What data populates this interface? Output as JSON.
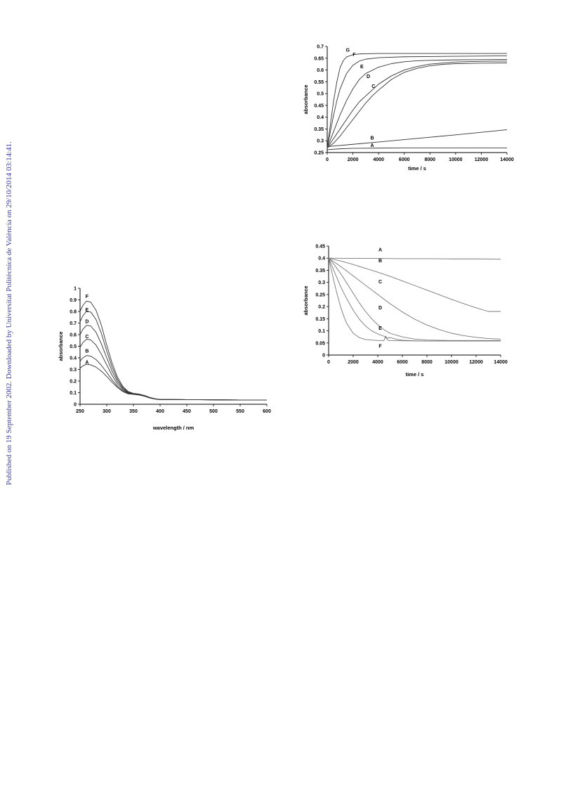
{
  "side_note": "Published on 19 September 2002. Downloaded by Universitat Politècnica de València on 29/10/2014 03:14:41.",
  "chart_data": [
    {
      "id": "time-course-rise",
      "type": "line",
      "title": "",
      "xlabel": "time / s",
      "ylabel": "absorbance",
      "xlim": [
        0,
        14000
      ],
      "ylim": [
        0.25,
        0.7
      ],
      "xticks": [
        0,
        2000,
        4000,
        6000,
        8000,
        10000,
        12000,
        14000
      ],
      "xtick_labels": [
        "0",
        "2000",
        "4000",
        "6000",
        "8000",
        "10000",
        "12000",
        "14000"
      ],
      "yticks": [
        0.25,
        0.3,
        0.35,
        0.4,
        0.45,
        0.5,
        0.55,
        0.6,
        0.65,
        0.7
      ],
      "ytick_labels": [
        "0.25",
        "0.3",
        "0.35",
        "0.4",
        "0.45",
        "0.5",
        "0.55",
        "0.6",
        "0.65",
        "0.7"
      ],
      "grid": false,
      "line_color": "#333333",
      "series": [
        {
          "name": "A",
          "x": [
            0,
            1000,
            2000,
            4000,
            6000,
            8000,
            10000,
            12000,
            14000
          ],
          "y": [
            0.262,
            0.266,
            0.268,
            0.269,
            0.27,
            0.27,
            0.27,
            0.27,
            0.27
          ]
        },
        {
          "name": "B",
          "x": [
            0,
            2000,
            4000,
            6000,
            8000,
            10000,
            12000,
            14000
          ],
          "y": [
            0.275,
            0.285,
            0.295,
            0.305,
            0.315,
            0.325,
            0.336,
            0.347
          ]
        },
        {
          "name": "C",
          "x": [
            0,
            500,
            1000,
            1500,
            2000,
            2500,
            3000,
            3500,
            4000,
            5000,
            6000,
            7000,
            8000,
            9000,
            10000,
            12000,
            14000
          ],
          "y": [
            0.27,
            0.29,
            0.32,
            0.355,
            0.39,
            0.425,
            0.46,
            0.49,
            0.515,
            0.56,
            0.59,
            0.607,
            0.618,
            0.624,
            0.627,
            0.629,
            0.63
          ]
        },
        {
          "name": "D",
          "x": [
            0,
            500,
            1000,
            1500,
            2000,
            2500,
            3000,
            4000,
            5000,
            6000,
            7000,
            8000,
            10000,
            12000,
            14000
          ],
          "y": [
            0.27,
            0.31,
            0.35,
            0.39,
            0.43,
            0.465,
            0.49,
            0.54,
            0.575,
            0.6,
            0.615,
            0.625,
            0.634,
            0.637,
            0.638
          ]
        },
        {
          "name": "E",
          "x": [
            0,
            500,
            1000,
            1500,
            2000,
            2500,
            3000,
            4000,
            5000,
            6000,
            7000,
            8000,
            10000,
            12000,
            14000
          ],
          "y": [
            0.27,
            0.34,
            0.41,
            0.47,
            0.52,
            0.56,
            0.585,
            0.612,
            0.627,
            0.635,
            0.639,
            0.641,
            0.643,
            0.644,
            0.645
          ]
        },
        {
          "name": "F",
          "x": [
            0,
            250,
            500,
            750,
            1000,
            1500,
            2000,
            2500,
            3000,
            4000,
            6000,
            8000,
            10000,
            14000
          ],
          "y": [
            0.27,
            0.34,
            0.41,
            0.47,
            0.52,
            0.585,
            0.62,
            0.638,
            0.646,
            0.652,
            0.656,
            0.657,
            0.658,
            0.66
          ]
        },
        {
          "name": "G",
          "x": [
            0,
            250,
            500,
            750,
            1000,
            1250,
            1500,
            2000,
            2500,
            3000,
            4000,
            6000,
            10000,
            14000
          ],
          "y": [
            0.27,
            0.37,
            0.47,
            0.55,
            0.61,
            0.64,
            0.655,
            0.665,
            0.668,
            0.669,
            0.67,
            0.67,
            0.67,
            0.67
          ]
        }
      ],
      "labels": [
        {
          "text": "G",
          "x": 1600,
          "y": 0.678
        },
        {
          "text": "F",
          "x": 2100,
          "y": 0.659
        },
        {
          "text": "E",
          "x": 2700,
          "y": 0.607
        },
        {
          "text": "D",
          "x": 3200,
          "y": 0.566
        },
        {
          "text": "C",
          "x": 3600,
          "y": 0.524
        },
        {
          "text": "B",
          "x": 3500,
          "y": 0.305
        },
        {
          "text": "A",
          "x": 3500,
          "y": 0.274
        }
      ]
    },
    {
      "id": "uv-vis-spectra",
      "type": "line",
      "title": "",
      "xlabel": "wavelength / nm",
      "ylabel": "absorbance",
      "xlim": [
        250,
        600
      ],
      "ylim": [
        0,
        1
      ],
      "xticks": [
        250,
        300,
        350,
        400,
        450,
        500,
        550,
        600
      ],
      "xtick_labels": [
        "250",
        "300",
        "350",
        "400",
        "450",
        "500",
        "550",
        "600"
      ],
      "yticks": [
        0,
        0.1,
        0.2,
        0.3,
        0.4,
        0.5,
        0.6,
        0.7,
        0.8,
        0.9,
        1
      ],
      "ytick_labels": [
        "0",
        "0.1",
        "0.2",
        "0.3",
        "0.4",
        "0.5",
        "0.6",
        "0.7",
        "0.8",
        "0.9",
        "1"
      ],
      "grid": false,
      "line_color": "#333333",
      "series": [
        {
          "name": "A",
          "x": [
            250,
            255,
            262,
            270,
            280,
            290,
            300,
            310,
            320,
            330,
            340,
            350,
            360,
            370,
            380,
            390,
            400,
            450,
            500,
            550,
            600
          ],
          "y": [
            0.31,
            0.33,
            0.345,
            0.34,
            0.32,
            0.285,
            0.24,
            0.19,
            0.145,
            0.11,
            0.09,
            0.085,
            0.08,
            0.07,
            0.055,
            0.045,
            0.04,
            0.04,
            0.038,
            0.037,
            0.037
          ]
        },
        {
          "name": "B",
          "x": [
            250,
            255,
            262,
            270,
            280,
            290,
            300,
            310,
            320,
            330,
            340,
            350,
            360,
            370,
            380,
            390,
            400,
            450,
            500,
            550,
            600
          ],
          "y": [
            0.37,
            0.4,
            0.42,
            0.415,
            0.385,
            0.335,
            0.275,
            0.21,
            0.155,
            0.115,
            0.093,
            0.087,
            0.082,
            0.072,
            0.056,
            0.045,
            0.04,
            0.04,
            0.038,
            0.037,
            0.037
          ]
        },
        {
          "name": "C",
          "x": [
            250,
            255,
            262,
            270,
            280,
            290,
            300,
            310,
            320,
            330,
            340,
            350,
            360,
            370,
            380,
            390,
            400,
            450,
            500,
            550,
            600
          ],
          "y": [
            0.49,
            0.53,
            0.56,
            0.555,
            0.51,
            0.43,
            0.34,
            0.25,
            0.175,
            0.125,
            0.097,
            0.089,
            0.084,
            0.074,
            0.057,
            0.046,
            0.041,
            0.04,
            0.038,
            0.037,
            0.037
          ]
        },
        {
          "name": "D",
          "x": [
            250,
            255,
            262,
            270,
            280,
            290,
            300,
            310,
            320,
            330,
            340,
            350,
            360,
            370,
            380,
            390,
            400,
            450,
            500,
            550,
            600
          ],
          "y": [
            0.6,
            0.645,
            0.68,
            0.675,
            0.62,
            0.52,
            0.4,
            0.285,
            0.195,
            0.135,
            0.1,
            0.09,
            0.085,
            0.075,
            0.058,
            0.046,
            0.041,
            0.04,
            0.038,
            0.037,
            0.037
          ]
        },
        {
          "name": "E",
          "x": [
            250,
            255,
            262,
            270,
            280,
            290,
            300,
            310,
            320,
            330,
            340,
            350,
            360,
            370,
            380,
            390,
            400,
            450,
            500,
            550,
            600
          ],
          "y": [
            0.71,
            0.76,
            0.8,
            0.795,
            0.73,
            0.61,
            0.46,
            0.32,
            0.215,
            0.145,
            0.105,
            0.092,
            0.087,
            0.076,
            0.059,
            0.047,
            0.042,
            0.04,
            0.038,
            0.037,
            0.037
          ]
        },
        {
          "name": "F",
          "x": [
            250,
            255,
            262,
            270,
            280,
            290,
            300,
            310,
            320,
            330,
            340,
            350,
            360,
            370,
            380,
            390,
            400,
            450,
            500,
            550,
            600
          ],
          "y": [
            0.8,
            0.85,
            0.89,
            0.88,
            0.81,
            0.68,
            0.51,
            0.355,
            0.235,
            0.155,
            0.11,
            0.094,
            0.088,
            0.077,
            0.06,
            0.048,
            0.042,
            0.04,
            0.038,
            0.037,
            0.037
          ]
        }
      ],
      "labels": [
        {
          "text": "F",
          "x": 263,
          "y": 0.915
        },
        {
          "text": "E",
          "x": 263,
          "y": 0.8
        },
        {
          "text": "D",
          "x": 263,
          "y": 0.7
        },
        {
          "text": "C",
          "x": 263,
          "y": 0.57
        },
        {
          "text": "B",
          "x": 263,
          "y": 0.445
        },
        {
          "text": "A",
          "x": 263,
          "y": 0.35
        }
      ]
    },
    {
      "id": "time-course-decay",
      "type": "line",
      "title": "",
      "xlabel": "time / s",
      "ylabel": "absorbance",
      "xlim": [
        0,
        14000
      ],
      "ylim": [
        0,
        0.45
      ],
      "xticks": [
        0,
        2000,
        4000,
        6000,
        8000,
        10000,
        12000,
        14000
      ],
      "xtick_labels": [
        "0",
        "2000",
        "4000",
        "6000",
        "8000",
        "10000",
        "12000",
        "14000"
      ],
      "yticks": [
        0,
        0.05,
        0.1,
        0.15,
        0.2,
        0.25,
        0.3,
        0.35,
        0.4,
        0.45
      ],
      "ytick_labels": [
        "0",
        "0.05",
        "0.1",
        "0.15",
        "0.2",
        "0.25",
        "0.3",
        "0.35",
        "0.4",
        "0.45"
      ],
      "grid": false,
      "line_color": "#777777",
      "series": [
        {
          "name": "A",
          "x": [
            0,
            2000,
            4000,
            6000,
            8000,
            10000,
            12000,
            14000
          ],
          "y": [
            0.4,
            0.399,
            0.399,
            0.398,
            0.398,
            0.397,
            0.397,
            0.396
          ]
        },
        {
          "name": "B",
          "x": [
            0,
            1000,
            2000,
            3000,
            4000,
            5000,
            6000,
            7000,
            8000,
            9000,
            10000,
            11000,
            12000,
            13000,
            14000
          ],
          "y": [
            0.4,
            0.388,
            0.374,
            0.358,
            0.342,
            0.325,
            0.306,
            0.287,
            0.268,
            0.249,
            0.23,
            0.212,
            0.195,
            0.18,
            0.18
          ]
        },
        {
          "name": "C",
          "x": [
            0,
            1000,
            2000,
            3000,
            4000,
            5000,
            6000,
            7000,
            8000,
            9000,
            10000,
            11000,
            12000,
            13000,
            14000
          ],
          "y": [
            0.4,
            0.365,
            0.327,
            0.288,
            0.25,
            0.212,
            0.178,
            0.148,
            0.124,
            0.105,
            0.09,
            0.08,
            0.073,
            0.068,
            0.066
          ]
        },
        {
          "name": "D",
          "x": [
            0,
            500,
            1000,
            1500,
            2000,
            2500,
            3000,
            3500,
            4000,
            4500,
            5000,
            6000,
            7000,
            8000,
            10000,
            12000,
            14000
          ],
          "y": [
            0.4,
            0.37,
            0.335,
            0.295,
            0.255,
            0.215,
            0.18,
            0.15,
            0.125,
            0.105,
            0.09,
            0.075,
            0.066,
            0.062,
            0.06,
            0.06,
            0.06
          ]
        },
        {
          "name": "E",
          "x": [
            0,
            500,
            1000,
            1500,
            2000,
            2500,
            3000,
            3500,
            4000,
            4500,
            4700,
            5000,
            5500,
            6000,
            7000,
            8000,
            10000,
            14000
          ],
          "y": [
            0.4,
            0.34,
            0.28,
            0.23,
            0.185,
            0.148,
            0.12,
            0.1,
            0.087,
            0.078,
            0.07,
            0.072,
            0.065,
            0.061,
            0.059,
            0.058,
            0.058,
            0.058
          ]
        },
        {
          "name": "F",
          "x": [
            0,
            250,
            500,
            750,
            1000,
            1250,
            1500,
            2000,
            2500,
            3000,
            4000,
            4500,
            4650,
            4800,
            5000,
            6000,
            8000,
            10000,
            14000
          ],
          "y": [
            0.4,
            0.345,
            0.29,
            0.24,
            0.195,
            0.158,
            0.128,
            0.09,
            0.072,
            0.064,
            0.06,
            0.06,
            0.078,
            0.062,
            0.06,
            0.059,
            0.058,
            0.058,
            0.058
          ]
        }
      ],
      "labels": [
        {
          "text": "A",
          "x": 4200,
          "y": 0.428
        },
        {
          "text": "B",
          "x": 4200,
          "y": 0.383
        },
        {
          "text": "C",
          "x": 4200,
          "y": 0.296
        },
        {
          "text": "D",
          "x": 4200,
          "y": 0.189
        },
        {
          "text": "E",
          "x": 4200,
          "y": 0.105
        },
        {
          "text": "F",
          "x": 4200,
          "y": 0.03
        }
      ]
    }
  ]
}
